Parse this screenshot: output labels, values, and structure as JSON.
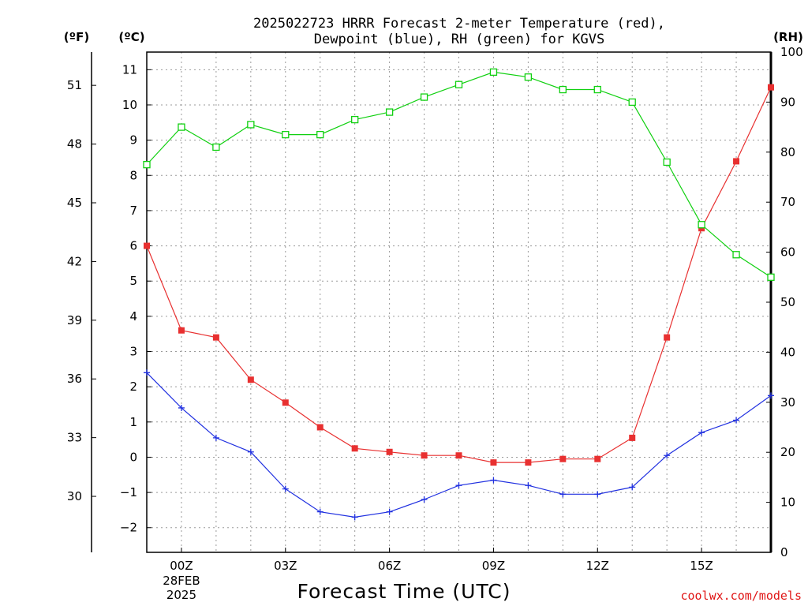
{
  "chart_data": {
    "type": "line",
    "title_lines": [
      "2025022723 HRRR Forecast 2-meter Temperature (red),",
      "Dewpoint (blue), RH (green) for KGVS"
    ],
    "xlabel": "Forecast Time (UTC)",
    "credit": "coolwx.com/models",
    "left_axis_f": {
      "unit_label": "(ºF)",
      "ticks": [
        30,
        33,
        36,
        39,
        42,
        45,
        48,
        51
      ]
    },
    "left_axis_c": {
      "unit_label": "(ºC)",
      "ticks": [
        -2,
        -1,
        0,
        1,
        2,
        3,
        4,
        5,
        6,
        7,
        8,
        9,
        10,
        11
      ],
      "ylim": [
        -2.7,
        11.5
      ]
    },
    "right_axis_rh": {
      "unit_label": "(RH)",
      "ticks": [
        0,
        10,
        20,
        30,
        40,
        50,
        60,
        70,
        80,
        90,
        100
      ],
      "ylim": [
        0,
        100
      ]
    },
    "x_hours": [
      -1,
      0,
      1,
      2,
      3,
      4,
      5,
      6,
      7,
      8,
      9,
      10,
      11,
      12,
      13,
      14,
      15,
      16,
      17
    ],
    "xlim": [
      -1,
      17
    ],
    "x_ticks": [
      {
        "hour": 0,
        "label": "00Z",
        "sub": [
          "28FEB",
          "2025"
        ]
      },
      {
        "hour": 3,
        "label": "03Z",
        "sub": []
      },
      {
        "hour": 6,
        "label": "06Z",
        "sub": []
      },
      {
        "hour": 9,
        "label": "09Z",
        "sub": []
      },
      {
        "hour": 12,
        "label": "12Z",
        "sub": []
      },
      {
        "hour": 15,
        "label": "15Z",
        "sub": []
      }
    ],
    "grid": true,
    "series": [
      {
        "key": "temperature",
        "axis": "c",
        "color": "#e83030",
        "marker": "filled-square",
        "values": [
          6.0,
          3.6,
          3.4,
          2.2,
          1.55,
          0.85,
          0.25,
          0.15,
          0.05,
          0.05,
          -0.15,
          -0.15,
          -0.05,
          -0.05,
          0.55,
          3.4,
          6.5,
          8.4,
          10.5
        ]
      },
      {
        "key": "dewpoint",
        "axis": "c",
        "color": "#2030e0",
        "marker": "plus",
        "values": [
          2.4,
          1.4,
          0.55,
          0.15,
          -0.9,
          -1.55,
          -1.7,
          -1.55,
          -1.2,
          -0.8,
          -0.65,
          -0.8,
          -1.05,
          -1.05,
          -0.85,
          0.05,
          0.7,
          1.05,
          1.75
        ]
      },
      {
        "key": "rh",
        "axis": "rh",
        "color": "#10d010",
        "marker": "open-square",
        "values": [
          77.5,
          85,
          81,
          85.5,
          83.5,
          83.5,
          86.5,
          88,
          91,
          93.5,
          96,
          95,
          92.5,
          92.5,
          90,
          78,
          65.5,
          59.5,
          55
        ]
      }
    ]
  }
}
